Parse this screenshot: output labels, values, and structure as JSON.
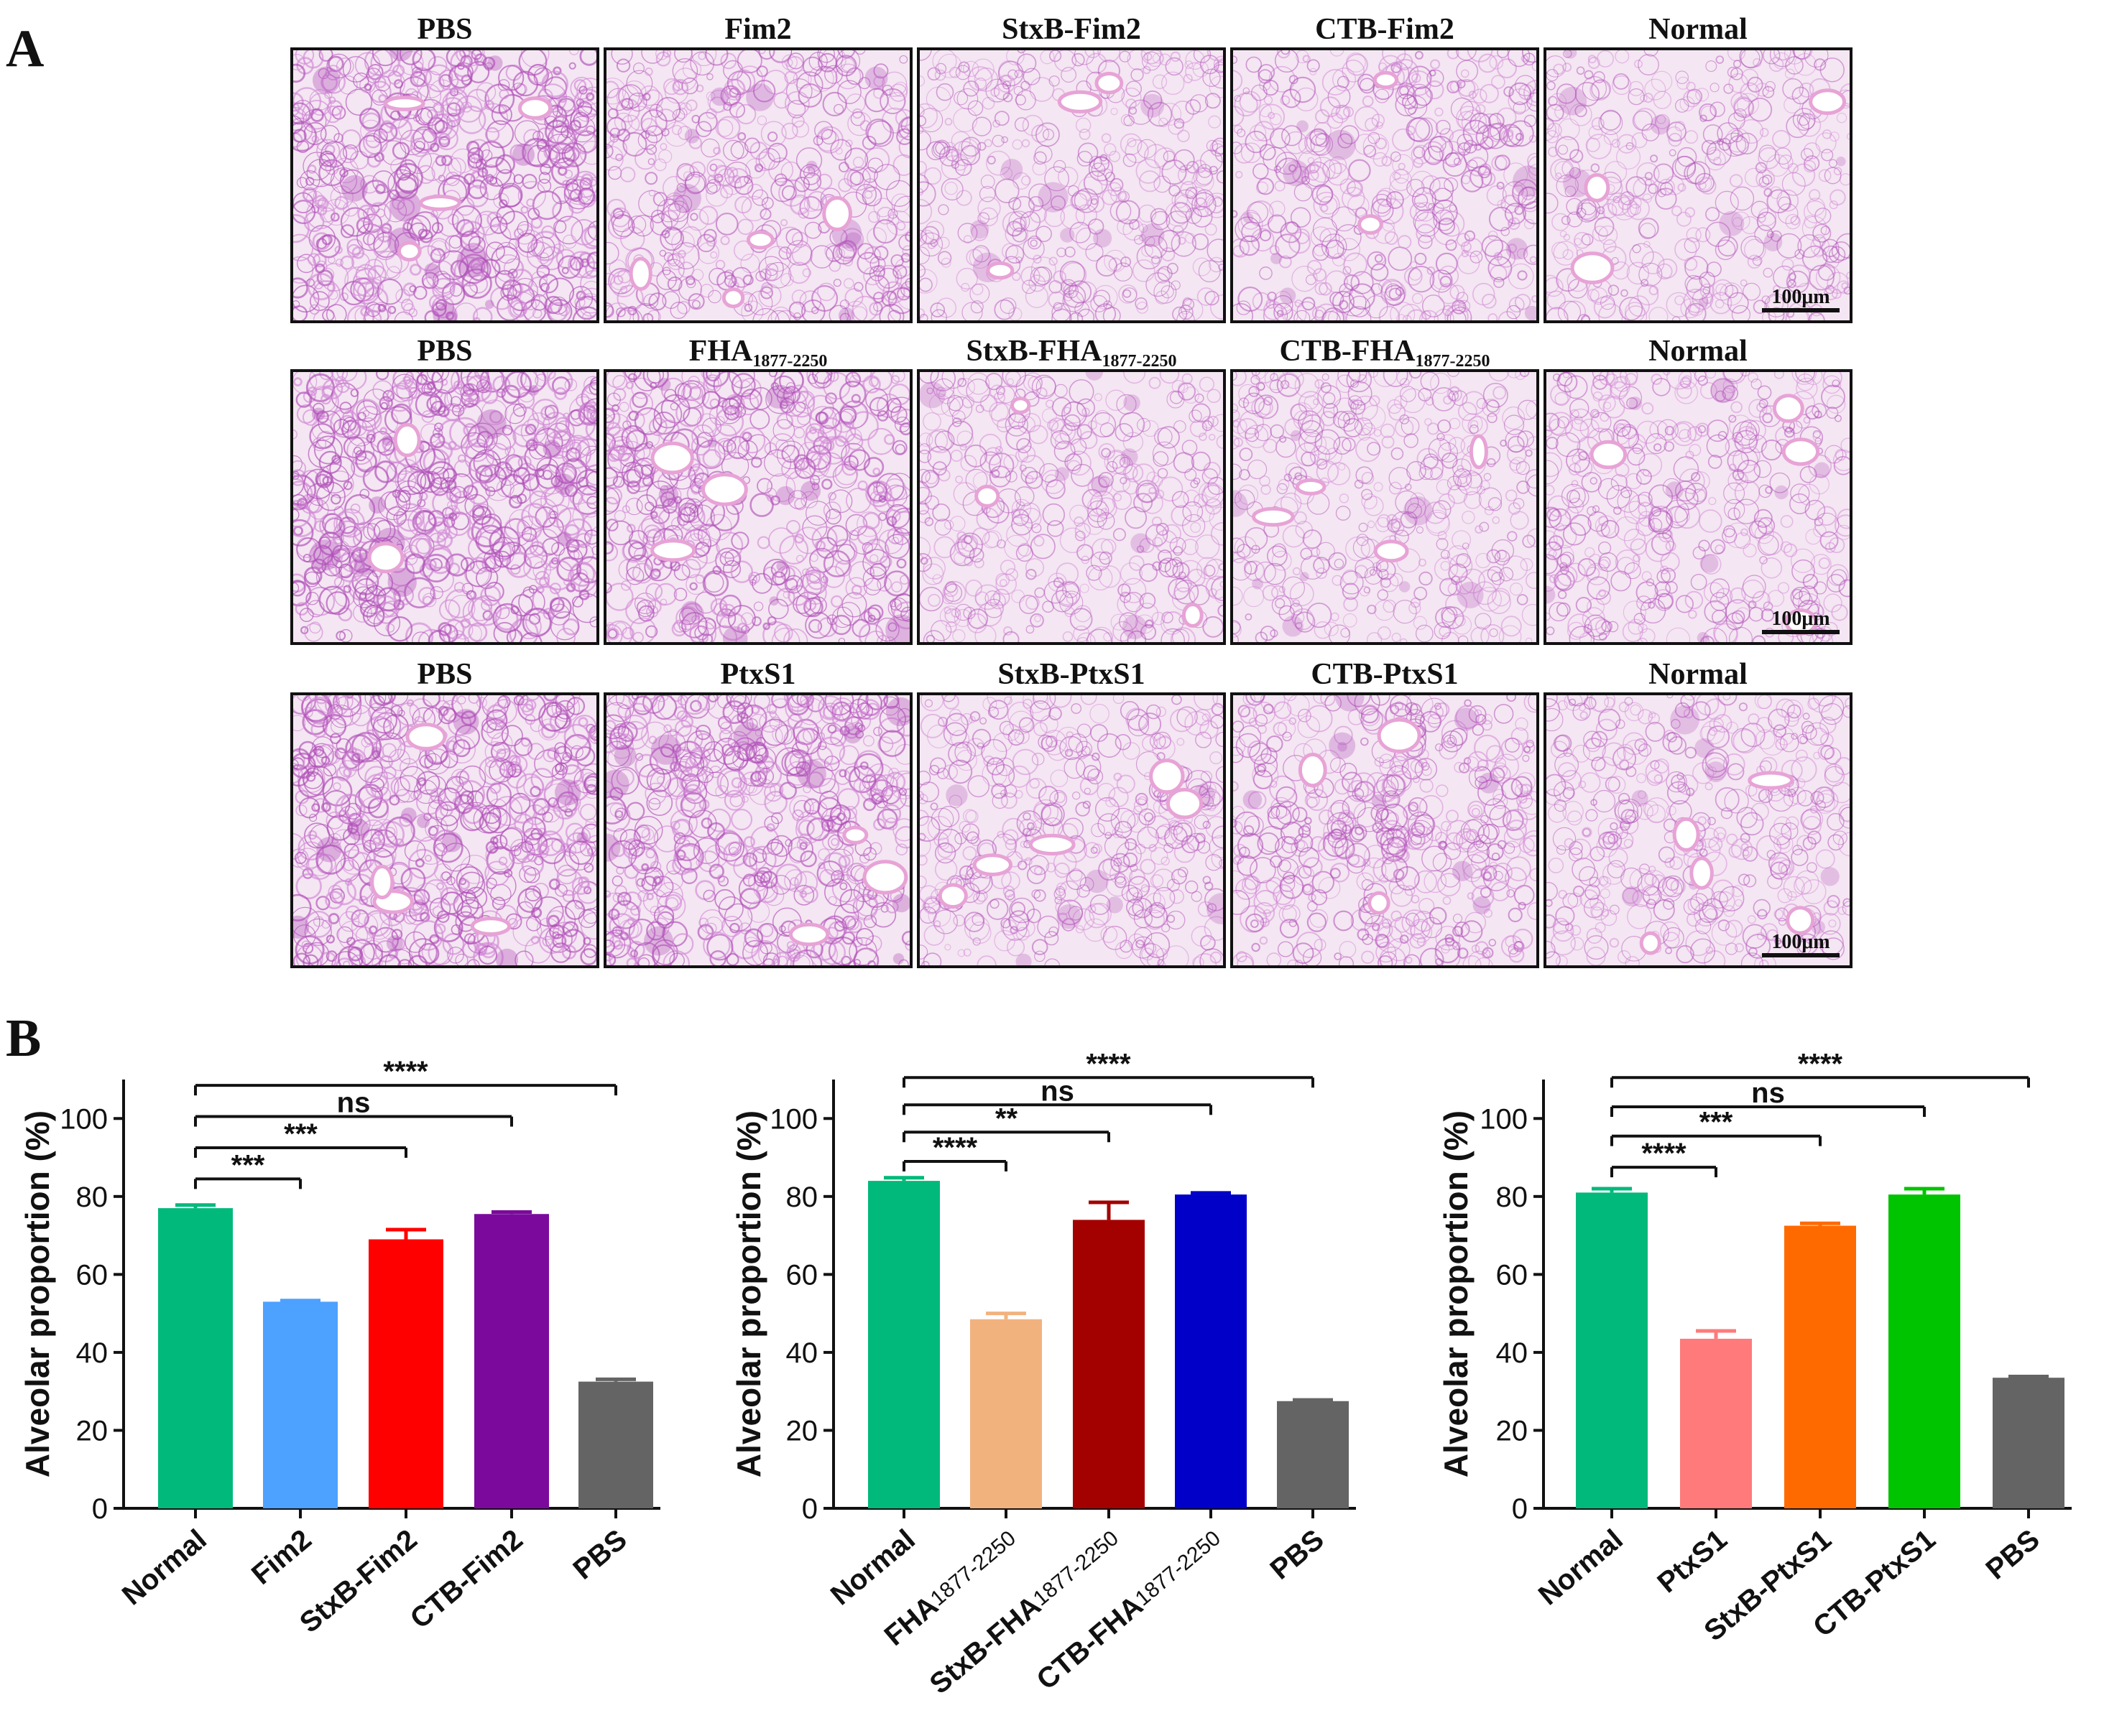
{
  "panel_a": {
    "letter": "A",
    "scale_label": "100μm",
    "tissue_colors": {
      "background": "#f4e6f2",
      "tissue": "#b04fb8",
      "tissue_light": "#d28ad6",
      "vessel": "#e7a3d6"
    },
    "rows": [
      {
        "titles": [
          {
            "main": "PBS",
            "sub": ""
          },
          {
            "main": "Fim2",
            "sub": ""
          },
          {
            "main": "StxB-Fim2",
            "sub": ""
          },
          {
            "main": "CTB-Fim2",
            "sub": ""
          },
          {
            "main": "Normal",
            "sub": ""
          }
        ]
      },
      {
        "titles": [
          {
            "main": "PBS",
            "sub": ""
          },
          {
            "main": "FHA",
            "sub": "1877-2250"
          },
          {
            "main": "StxB-FHA",
            "sub": "1877-2250"
          },
          {
            "main": "CTB-FHA",
            "sub": "1877-2250"
          },
          {
            "main": "Normal",
            "sub": ""
          }
        ]
      },
      {
        "titles": [
          {
            "main": "PBS",
            "sub": ""
          },
          {
            "main": "PtxS1",
            "sub": ""
          },
          {
            "main": "StxB-PtxS1",
            "sub": ""
          },
          {
            "main": "CTB-PtxS1",
            "sub": ""
          },
          {
            "main": "Normal",
            "sub": ""
          }
        ]
      }
    ],
    "tissue_density": [
      [
        0.62,
        0.42,
        0.3,
        0.38,
        0.3
      ],
      [
        0.66,
        0.55,
        0.32,
        0.3,
        0.33
      ],
      [
        0.64,
        0.58,
        0.34,
        0.42,
        0.32
      ]
    ]
  },
  "panel_b": {
    "letter": "B"
  },
  "chart_data": [
    {
      "type": "bar",
      "ylabel": "Alveolar proportion (%)",
      "ylim": [
        0,
        110
      ],
      "yticks": [
        0,
        20,
        40,
        60,
        80,
        100
      ],
      "categories": [
        {
          "main": "Normal",
          "sub": ""
        },
        {
          "main": "Fim2",
          "sub": ""
        },
        {
          "main": "StxB-Fim2",
          "sub": ""
        },
        {
          "main": "CTB-Fim2",
          "sub": ""
        },
        {
          "main": "PBS",
          "sub": ""
        }
      ],
      "values": [
        77,
        53,
        69,
        75.5,
        32.5
      ],
      "errors": [
        0.8,
        0.3,
        2.5,
        0.5,
        0.6
      ],
      "colors": [
        "#00b97a",
        "#4da1ff",
        "#ff0000",
        "#7b0a9c",
        "#646464"
      ],
      "comparisons": [
        {
          "to": 1,
          "label": "***",
          "y": 84.5
        },
        {
          "to": 2,
          "label": "***",
          "y": 92.5
        },
        {
          "to": 3,
          "label": "ns",
          "y": 100.5
        },
        {
          "to": 4,
          "label": "****",
          "y": 108.5
        }
      ]
    },
    {
      "type": "bar",
      "ylabel": "Alveolar proportion (%)",
      "ylim": [
        0,
        110
      ],
      "yticks": [
        0,
        20,
        40,
        60,
        80,
        100
      ],
      "categories": [
        {
          "main": "Normal",
          "sub": ""
        },
        {
          "main": "FHA",
          "sub": "1877-2250"
        },
        {
          "main": "StxB-FHA",
          "sub": "1877-2250"
        },
        {
          "main": "CTB-FHA",
          "sub": "1877-2250"
        },
        {
          "main": "PBS",
          "sub": ""
        }
      ],
      "values": [
        84,
        48.5,
        74,
        80.5,
        27.5
      ],
      "errors": [
        0.8,
        1.5,
        4.5,
        0.4,
        0.3
      ],
      "colors": [
        "#00b97a",
        "#f2b27e",
        "#a30000",
        "#0000c8",
        "#646464"
      ],
      "comparisons": [
        {
          "to": 1,
          "label": "****",
          "y": 89
        },
        {
          "to": 2,
          "label": "**",
          "y": 96.5
        },
        {
          "to": 3,
          "label": "ns",
          "y": 103.5
        },
        {
          "to": 4,
          "label": "****",
          "y": 110.5
        }
      ]
    },
    {
      "type": "bar",
      "ylabel": "Alveolar proportion (%)",
      "ylim": [
        0,
        110
      ],
      "yticks": [
        0,
        20,
        40,
        60,
        80,
        100
      ],
      "categories": [
        {
          "main": "Normal",
          "sub": ""
        },
        {
          "main": "PtxS1",
          "sub": ""
        },
        {
          "main": "StxB-PtxS1",
          "sub": ""
        },
        {
          "main": "CTB-PtxS1",
          "sub": ""
        },
        {
          "main": "PBS",
          "sub": ""
        }
      ],
      "values": [
        81,
        43.5,
        72.5,
        80.5,
        33.5
      ],
      "errors": [
        1.0,
        2.0,
        0.6,
        1.5,
        0.3
      ],
      "colors": [
        "#00b97a",
        "#ff7a7a",
        "#ff6a00",
        "#00c400",
        "#646464"
      ],
      "comparisons": [
        {
          "to": 1,
          "label": "****",
          "y": 87.5
        },
        {
          "to": 2,
          "label": "***",
          "y": 95.5
        },
        {
          "to": 3,
          "label": "ns",
          "y": 103
        },
        {
          "to": 4,
          "label": "****",
          "y": 110.5
        }
      ]
    }
  ]
}
